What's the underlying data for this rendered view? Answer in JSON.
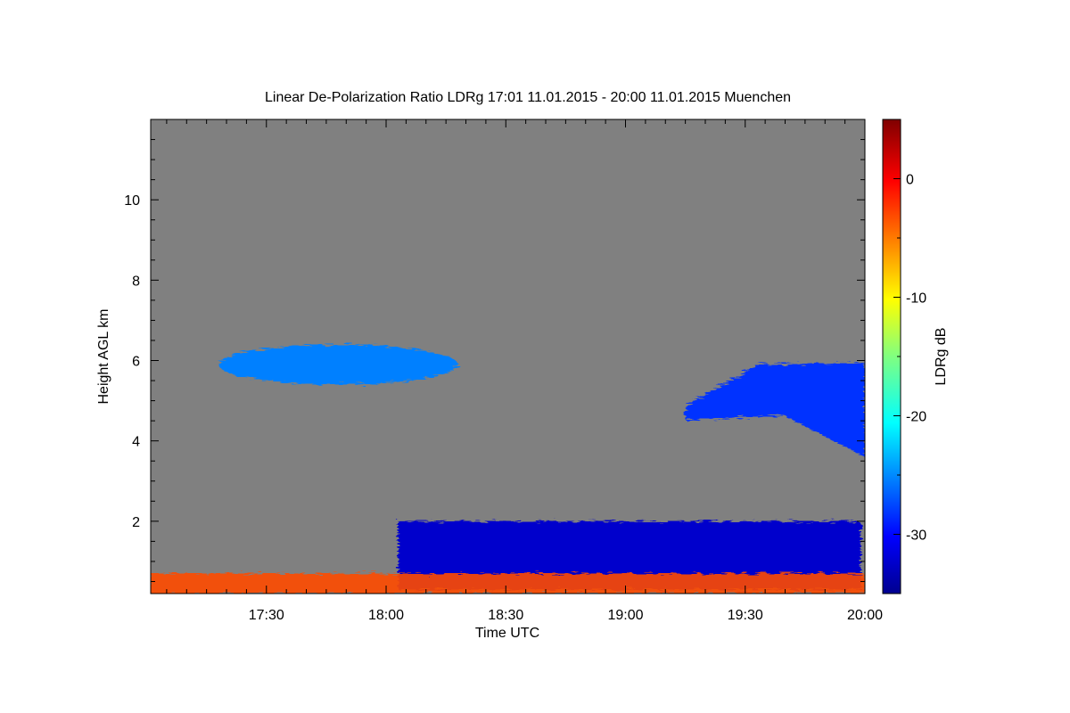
{
  "chart_data": {
    "type": "heatmap",
    "title": "Linear De-Polarization Ratio LDRg   17:01 11.01.2015 - 20:00 11.01.2015 Muenchen",
    "xlabel": "Time UTC",
    "ylabel": "Height AGL km",
    "xlim_minutes": [
      1021,
      1200
    ],
    "ylim": [
      0.2,
      12.0
    ],
    "x_ticks": [
      {
        "label": "17:30",
        "value": 1050
      },
      {
        "label": "18:00",
        "value": 1080
      },
      {
        "label": "18:30",
        "value": 1110
      },
      {
        "label": "19:00",
        "value": 1140
      },
      {
        "label": "19:30",
        "value": 1170
      },
      {
        "label": "20:00",
        "value": 1200
      }
    ],
    "y_ticks": [
      {
        "label": "2",
        "value": 2
      },
      {
        "label": "4",
        "value": 4
      },
      {
        "label": "6",
        "value": 6
      },
      {
        "label": "8",
        "value": 8
      },
      {
        "label": "10",
        "value": 10
      }
    ],
    "background_color": "#808080",
    "colorbar": {
      "label": "LDRg dB",
      "range": [
        -35,
        5
      ],
      "colormap": "jet",
      "ticks": [
        {
          "label": "0",
          "value": 0
        },
        {
          "label": "-10",
          "value": -10
        },
        {
          "label": "-20",
          "value": -20
        },
        {
          "label": "-30",
          "value": -30
        }
      ]
    },
    "features": [
      {
        "time_start": 1038,
        "time_end": 1098,
        "base_km": 5.4,
        "top_km": 6.4,
        "ldr_db": -25
      },
      {
        "time_start": 1083,
        "time_end": 1199,
        "base_km": 0.3,
        "top_km": 2.0,
        "ldr_db": -32
      },
      {
        "time_start": 1155,
        "time_end": 1200,
        "base_km": 3.6,
        "top_km": 5.9,
        "ldr_db": -28
      },
      {
        "time_start": 1021,
        "time_end": 1200,
        "base_km": 0.2,
        "top_km": 0.7,
        "ldr_db": -3
      }
    ]
  }
}
